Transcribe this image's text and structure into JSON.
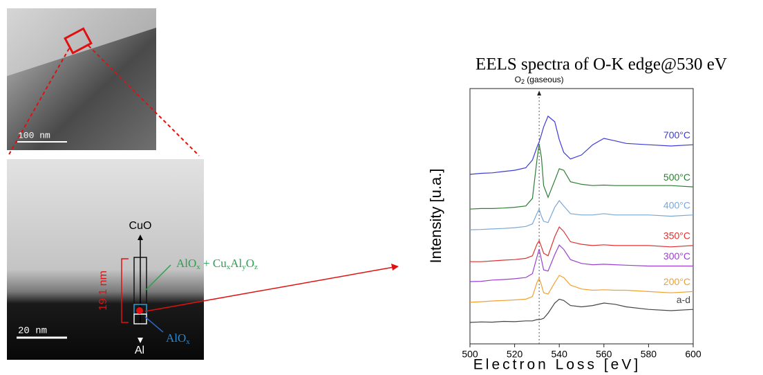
{
  "labels": {
    "scale_top": "100 nm",
    "scale_bottom": "20 nm",
    "cuo": "CuO",
    "al": "Al",
    "thickness": "19.1 nm",
    "mixed_oxide": [
      "AlO",
      "x",
      " + Cu",
      "x",
      "Al",
      "y",
      "O",
      "z"
    ],
    "alox": [
      "AlO",
      "x"
    ]
  },
  "chart_data": {
    "type": "line",
    "title": "EELS spectra of O-K edge@530 eV",
    "x_label": "Electron  Loss  [eV]",
    "y_label": "Intensity [u.a.]",
    "annotation": [
      "O",
      "2",
      " (gaseous)"
    ],
    "annotation_x": 531,
    "x": [
      500,
      505,
      510,
      515,
      520,
      525,
      528,
      530,
      531,
      532,
      533,
      535,
      538,
      540,
      542,
      545,
      550,
      555,
      560,
      565,
      570,
      580,
      590,
      600
    ],
    "xlim": [
      500,
      600
    ],
    "xticks": [
      500,
      520,
      540,
      560,
      580,
      600
    ],
    "ylim": [
      0,
      10
    ],
    "series": [
      {
        "name": "700°C",
        "color": "#3b3bd6",
        "values": [
          6.64,
          6.68,
          6.7,
          6.75,
          6.8,
          6.9,
          7.2,
          7.7,
          7.91,
          8.2,
          8.5,
          8.92,
          8.7,
          8.0,
          7.5,
          7.24,
          7.4,
          7.8,
          8.05,
          7.95,
          7.85,
          7.8,
          7.75,
          7.8
        ]
      },
      {
        "name": "500°C",
        "color": "#2e7d32",
        "values": [
          5.28,
          5.3,
          5.3,
          5.32,
          5.35,
          5.4,
          5.7,
          7.2,
          7.83,
          7.3,
          6.2,
          5.74,
          6.4,
          6.86,
          6.8,
          6.35,
          6.25,
          6.2,
          6.22,
          6.2,
          6.2,
          6.2,
          6.2,
          6.15
        ]
      },
      {
        "name": "400°C",
        "color": "#7aa7d6",
        "values": [
          4.47,
          4.48,
          4.5,
          4.52,
          4.55,
          4.6,
          4.7,
          5.1,
          5.28,
          5.0,
          4.8,
          4.75,
          5.35,
          5.61,
          5.4,
          5.1,
          5.05,
          5.05,
          5.1,
          5.05,
          5.05,
          5.05,
          5.0,
          5.05
        ]
      },
      {
        "name": "350°C",
        "color": "#e03030",
        "values": [
          3.22,
          3.22,
          3.25,
          3.28,
          3.3,
          3.35,
          3.45,
          3.9,
          4.04,
          3.8,
          3.55,
          3.45,
          4.2,
          4.58,
          4.4,
          4.0,
          3.9,
          3.85,
          3.88,
          3.85,
          3.85,
          3.85,
          3.8,
          3.85
        ]
      },
      {
        "name": "300°C",
        "color": "#9b3fd1",
        "values": [
          2.44,
          2.45,
          2.5,
          2.52,
          2.55,
          2.6,
          2.75,
          3.4,
          3.71,
          3.3,
          2.9,
          2.85,
          3.5,
          3.87,
          3.7,
          3.3,
          3.15,
          3.1,
          3.12,
          3.1,
          3.08,
          3.05,
          3.05,
          3.05
        ]
      },
      {
        "name": "200°C",
        "color": "#f0a030",
        "values": [
          1.63,
          1.65,
          1.68,
          1.7,
          1.72,
          1.75,
          1.85,
          2.4,
          2.57,
          2.3,
          2.0,
          1.95,
          2.4,
          2.68,
          2.6,
          2.3,
          2.15,
          2.1,
          2.12,
          2.1,
          2.1,
          2.05,
          2.0,
          2.05
        ]
      },
      {
        "name": "a-d",
        "color": "#444444",
        "values": [
          0.84,
          0.86,
          0.85,
          0.88,
          0.87,
          0.9,
          0.9,
          0.95,
          0.95,
          0.97,
          1.0,
          1.2,
          1.6,
          1.75,
          1.7,
          1.5,
          1.45,
          1.5,
          1.6,
          1.55,
          1.45,
          1.35,
          1.3,
          1.35
        ]
      }
    ]
  }
}
